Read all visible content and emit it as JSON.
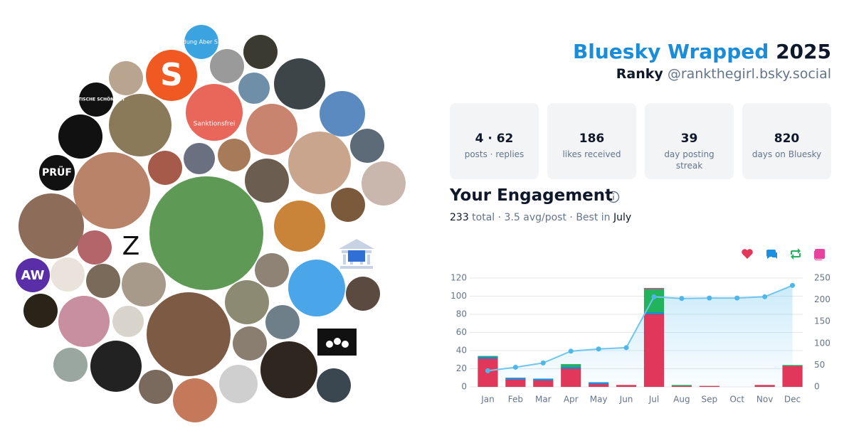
{
  "header": {
    "title": "Bluesky Wrapped",
    "year": "2025",
    "name": "Ranky",
    "handle": "@rankthegirl.bsky.social"
  },
  "stats": [
    {
      "value": "4 · 62",
      "label": "posts · replies"
    },
    {
      "value": "186",
      "label": "likes received"
    },
    {
      "value": "39",
      "label": "day posting streak"
    },
    {
      "value": "820",
      "label": "days on Bluesky"
    }
  ],
  "avatars": [
    "#Bildung Aber Sicher",
    "S",
    "POLITISCHE SCHÖNHEIT",
    "Sanktionsfrei",
    "PRÜF",
    "Z",
    "AW"
  ],
  "engagement": {
    "title": "Your Engagement",
    "summary": [
      "233",
      " total · 3.5 avg/post · Best in ",
      "July"
    ]
  },
  "chart_data": {
    "type": "bar",
    "categories": [
      "Jan",
      "Feb",
      "Mar",
      "Apr",
      "May",
      "Jun",
      "Jul",
      "Aug",
      "Sep",
      "Oct",
      "Nov",
      "Dec"
    ],
    "series": [
      {
        "color": "#e0375a",
        "values": [
          31,
          8,
          7,
          20,
          3,
          2,
          80,
          1,
          1,
          0,
          2,
          23
        ]
      },
      {
        "color": "#1d8fe0",
        "values": [
          2,
          2,
          2,
          2,
          2,
          0,
          2,
          0,
          0,
          0,
          0,
          0
        ]
      },
      {
        "color": "#22b35c",
        "values": [
          1,
          0,
          0,
          3,
          0,
          0,
          26,
          1,
          0,
          0,
          0,
          1
        ]
      },
      {
        "color": "#e8429f",
        "values": [
          0,
          0,
          0,
          0,
          0,
          0,
          1,
          0,
          0,
          0,
          0,
          0
        ]
      },
      {
        "type": "line",
        "axis": "y2",
        "color": "#6ec6f0",
        "values": [
          37,
          45,
          55,
          82,
          87,
          90,
          207,
          203,
          204,
          204,
          207,
          233
        ]
      }
    ],
    "ylim": [
      0,
      120
    ],
    "yticks": [
      0,
      20,
      40,
      60,
      80,
      100,
      120
    ],
    "y2lim": [
      0,
      250
    ],
    "y2ticks": [
      0,
      50,
      100,
      150,
      200,
      250
    ],
    "grid": true
  }
}
